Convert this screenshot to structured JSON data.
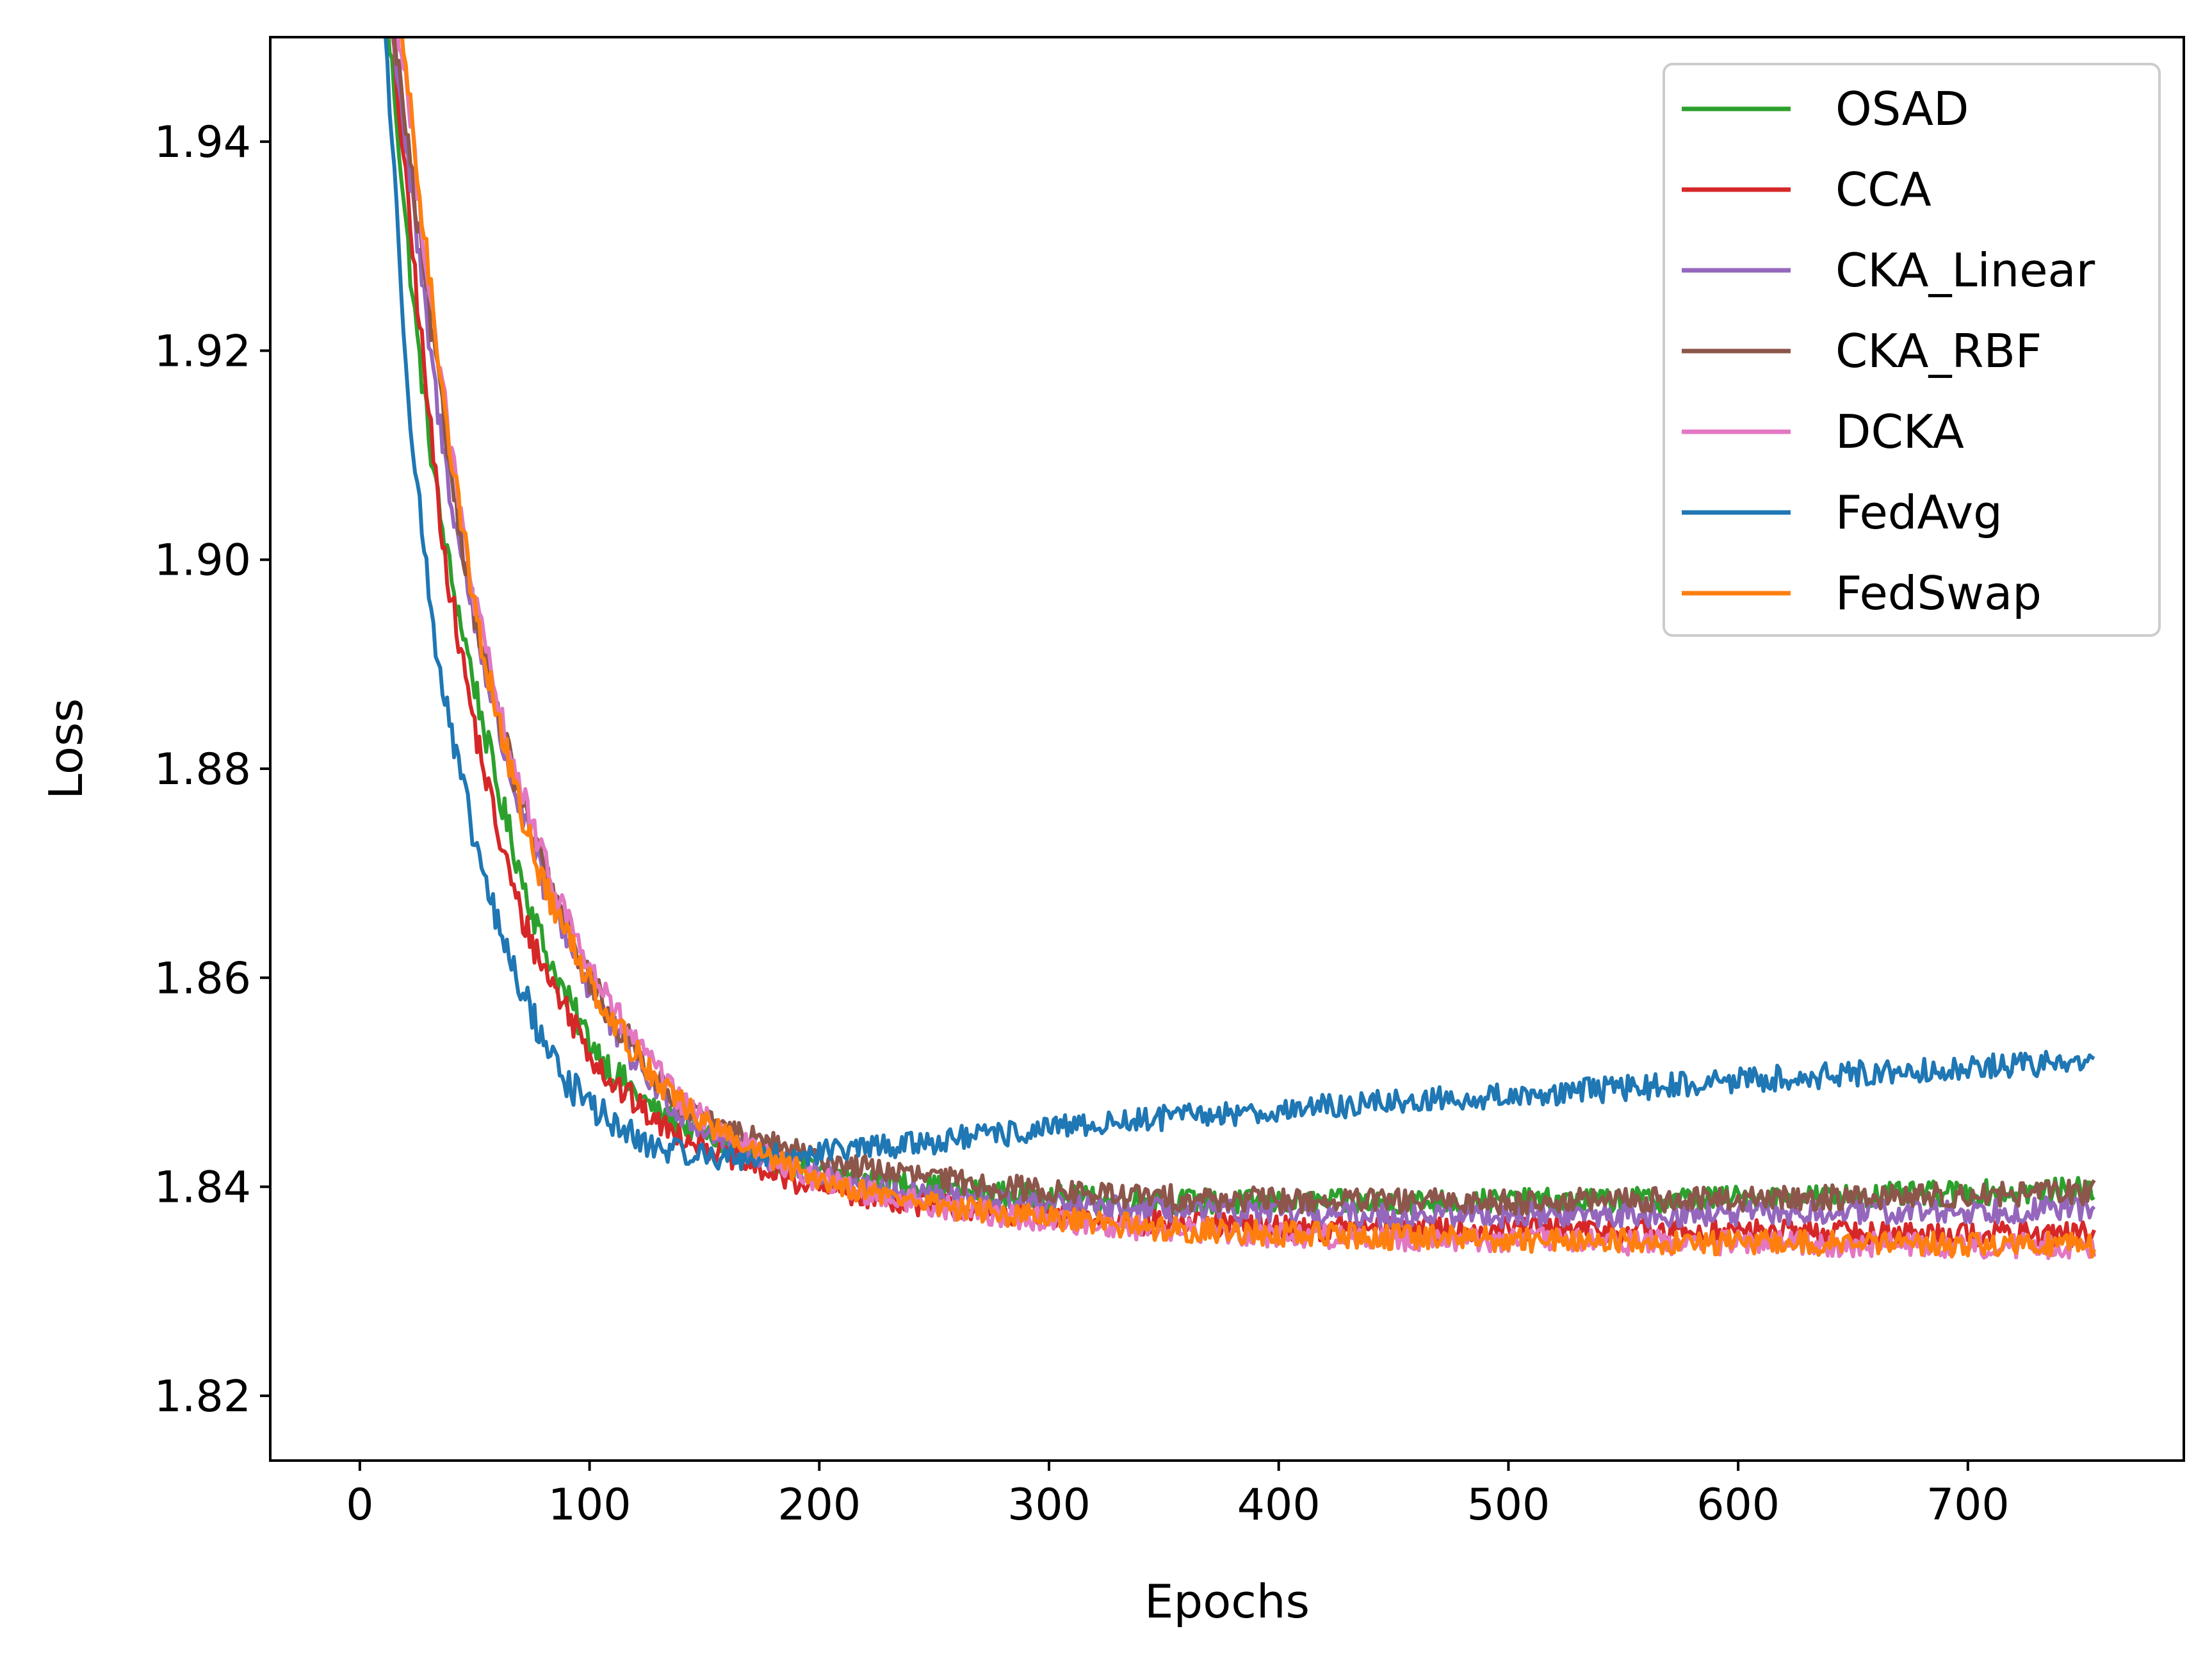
{
  "chart_data": {
    "type": "line",
    "title": "",
    "xlabel": "Epochs",
    "ylabel": "Loss",
    "xlim": [
      -39,
      794
    ],
    "ylim": [
      1.8138,
      1.95
    ],
    "xticks": [
      0,
      100,
      200,
      300,
      400,
      500,
      600,
      700
    ],
    "yticks": [
      1.82,
      1.84,
      1.86,
      1.88,
      1.9,
      1.92,
      1.94
    ],
    "ytick_labels": [
      "1.82",
      "1.84",
      "1.86",
      "1.88",
      "1.90",
      "1.92",
      "1.94"
    ],
    "grid": false,
    "legend_position": "top-right",
    "series": [
      {
        "name": "OSAD",
        "color": "#2ca02c",
        "x": [
          10,
          15,
          20,
          25,
          30,
          35,
          40,
          50,
          60,
          70,
          80,
          90,
          100,
          110,
          120,
          130,
          140,
          150,
          160,
          170,
          180,
          190,
          200,
          220,
          240,
          260,
          280,
          300,
          320,
          340,
          360,
          380,
          400,
          450,
          500,
          550,
          600,
          650,
          700,
          755
        ],
        "y": [
          1.955,
          1.945,
          1.932,
          1.921,
          1.912,
          1.904,
          1.898,
          1.888,
          1.878,
          1.87,
          1.863,
          1.858,
          1.854,
          1.851,
          1.849,
          1.847,
          1.846,
          1.845,
          1.844,
          1.843,
          1.8425,
          1.842,
          1.8415,
          1.8408,
          1.8402,
          1.8397,
          1.8393,
          1.839,
          1.8388,
          1.8387,
          1.8386,
          1.8385,
          1.8385,
          1.8385,
          1.8386,
          1.8387,
          1.8389,
          1.8391,
          1.8394,
          1.8397
        ]
      },
      {
        "name": "CCA",
        "color": "#d62728",
        "x": [
          10,
          15,
          20,
          25,
          30,
          35,
          40,
          50,
          60,
          70,
          80,
          90,
          100,
          110,
          120,
          130,
          140,
          150,
          160,
          170,
          180,
          190,
          200,
          220,
          240,
          260,
          280,
          300,
          320,
          340,
          360,
          380,
          400,
          450,
          500,
          550,
          600,
          650,
          700,
          755
        ],
        "y": [
          1.955,
          1.948,
          1.936,
          1.925,
          1.914,
          1.904,
          1.896,
          1.884,
          1.874,
          1.866,
          1.861,
          1.857,
          1.853,
          1.85,
          1.848,
          1.846,
          1.845,
          1.844,
          1.843,
          1.842,
          1.8412,
          1.8405,
          1.84,
          1.8392,
          1.8385,
          1.838,
          1.8375,
          1.8371,
          1.8368,
          1.8366,
          1.8364,
          1.8362,
          1.8361,
          1.836,
          1.8359,
          1.8358,
          1.8357,
          1.8356,
          1.8355,
          1.8354
        ]
      },
      {
        "name": "CKA_Linear",
        "color": "#9467bd",
        "x": [
          12,
          18,
          24,
          30,
          36,
          42,
          50,
          60,
          70,
          80,
          90,
          100,
          110,
          120,
          130,
          140,
          150,
          160,
          170,
          180,
          190,
          200,
          220,
          240,
          260,
          280,
          300,
          320,
          340,
          360,
          380,
          400,
          450,
          500,
          550,
          600,
          650,
          700,
          755
        ],
        "y": [
          1.955,
          1.944,
          1.932,
          1.921,
          1.911,
          1.903,
          1.894,
          1.884,
          1.876,
          1.869,
          1.864,
          1.859,
          1.855,
          1.852,
          1.849,
          1.847,
          1.8455,
          1.8445,
          1.8435,
          1.8425,
          1.842,
          1.8413,
          1.8403,
          1.8396,
          1.839,
          1.8386,
          1.8382,
          1.838,
          1.8378,
          1.8376,
          1.8375,
          1.8374,
          1.8373,
          1.8373,
          1.8373,
          1.8374,
          1.8375,
          1.8377,
          1.8379
        ]
      },
      {
        "name": "CKA_RBF",
        "color": "#8c564b",
        "x": [
          12,
          18,
          24,
          30,
          36,
          42,
          50,
          60,
          70,
          80,
          90,
          100,
          110,
          120,
          130,
          140,
          150,
          160,
          170,
          180,
          190,
          200,
          220,
          240,
          260,
          280,
          300,
          320,
          340,
          360,
          380,
          400,
          450,
          500,
          550,
          600,
          650,
          700,
          755
        ],
        "y": [
          1.955,
          1.945,
          1.934,
          1.924,
          1.914,
          1.905,
          1.895,
          1.885,
          1.877,
          1.87,
          1.865,
          1.86,
          1.856,
          1.853,
          1.85,
          1.848,
          1.8465,
          1.8455,
          1.8447,
          1.844,
          1.8433,
          1.8427,
          1.8418,
          1.8411,
          1.8405,
          1.84,
          1.8396,
          1.8393,
          1.8391,
          1.8389,
          1.8388,
          1.8387,
          1.8386,
          1.8386,
          1.8387,
          1.8388,
          1.839,
          1.8392,
          1.8395
        ]
      },
      {
        "name": "DCKA",
        "color": "#e377c2",
        "x": [
          14,
          20,
          26,
          32,
          38,
          44,
          50,
          60,
          70,
          80,
          90,
          100,
          110,
          120,
          130,
          140,
          150,
          160,
          170,
          180,
          190,
          200,
          220,
          240,
          260,
          280,
          300,
          320,
          340,
          360,
          380,
          400,
          450,
          500,
          550,
          600,
          650,
          700,
          755
        ],
        "y": [
          1.955,
          1.946,
          1.934,
          1.923,
          1.913,
          1.904,
          1.896,
          1.886,
          1.878,
          1.871,
          1.866,
          1.861,
          1.857,
          1.854,
          1.851,
          1.848,
          1.8465,
          1.845,
          1.8437,
          1.8425,
          1.8415,
          1.8407,
          1.8395,
          1.8386,
          1.8379,
          1.8373,
          1.8368,
          1.8364,
          1.8361,
          1.8358,
          1.8356,
          1.8354,
          1.8351,
          1.8349,
          1.8347,
          1.8346,
          1.8345,
          1.8344,
          1.8343
        ]
      },
      {
        "name": "FedAvg",
        "color": "#1f77b4",
        "x": [
          10,
          14,
          18,
          22,
          26,
          30,
          35,
          40,
          50,
          60,
          70,
          80,
          90,
          100,
          110,
          120,
          130,
          140,
          150,
          160,
          170,
          180,
          190,
          200,
          220,
          240,
          260,
          280,
          300,
          350,
          400,
          450,
          500,
          550,
          600,
          650,
          700,
          755
        ],
        "y": [
          1.955,
          1.94,
          1.926,
          1.914,
          1.905,
          1.897,
          1.889,
          1.883,
          1.873,
          1.865,
          1.859,
          1.854,
          1.85,
          1.848,
          1.846,
          1.8445,
          1.8437,
          1.8433,
          1.843,
          1.8428,
          1.8428,
          1.8429,
          1.8431,
          1.8433,
          1.8437,
          1.8441,
          1.8446,
          1.845,
          1.8455,
          1.8466,
          1.8473,
          1.8481,
          1.8487,
          1.8494,
          1.8502,
          1.8508,
          1.8514,
          1.852
        ]
      },
      {
        "name": "FedSwap",
        "color": "#ff7f0e",
        "x": [
          16,
          22,
          28,
          34,
          40,
          46,
          52,
          60,
          70,
          80,
          90,
          100,
          110,
          120,
          130,
          140,
          150,
          160,
          170,
          180,
          190,
          200,
          220,
          240,
          260,
          280,
          300,
          320,
          340,
          360,
          380,
          400,
          450,
          500,
          550,
          600,
          650,
          700,
          755
        ],
        "y": [
          1.955,
          1.943,
          1.931,
          1.92,
          1.91,
          1.901,
          1.893,
          1.885,
          1.876,
          1.869,
          1.864,
          1.86,
          1.856,
          1.853,
          1.85,
          1.848,
          1.8462,
          1.8448,
          1.8436,
          1.8425,
          1.8416,
          1.8408,
          1.8396,
          1.8387,
          1.838,
          1.8374,
          1.8369,
          1.8365,
          1.8362,
          1.8359,
          1.8357,
          1.8355,
          1.8352,
          1.835,
          1.8348,
          1.8347,
          1.8346,
          1.8345,
          1.8344
        ]
      }
    ]
  }
}
